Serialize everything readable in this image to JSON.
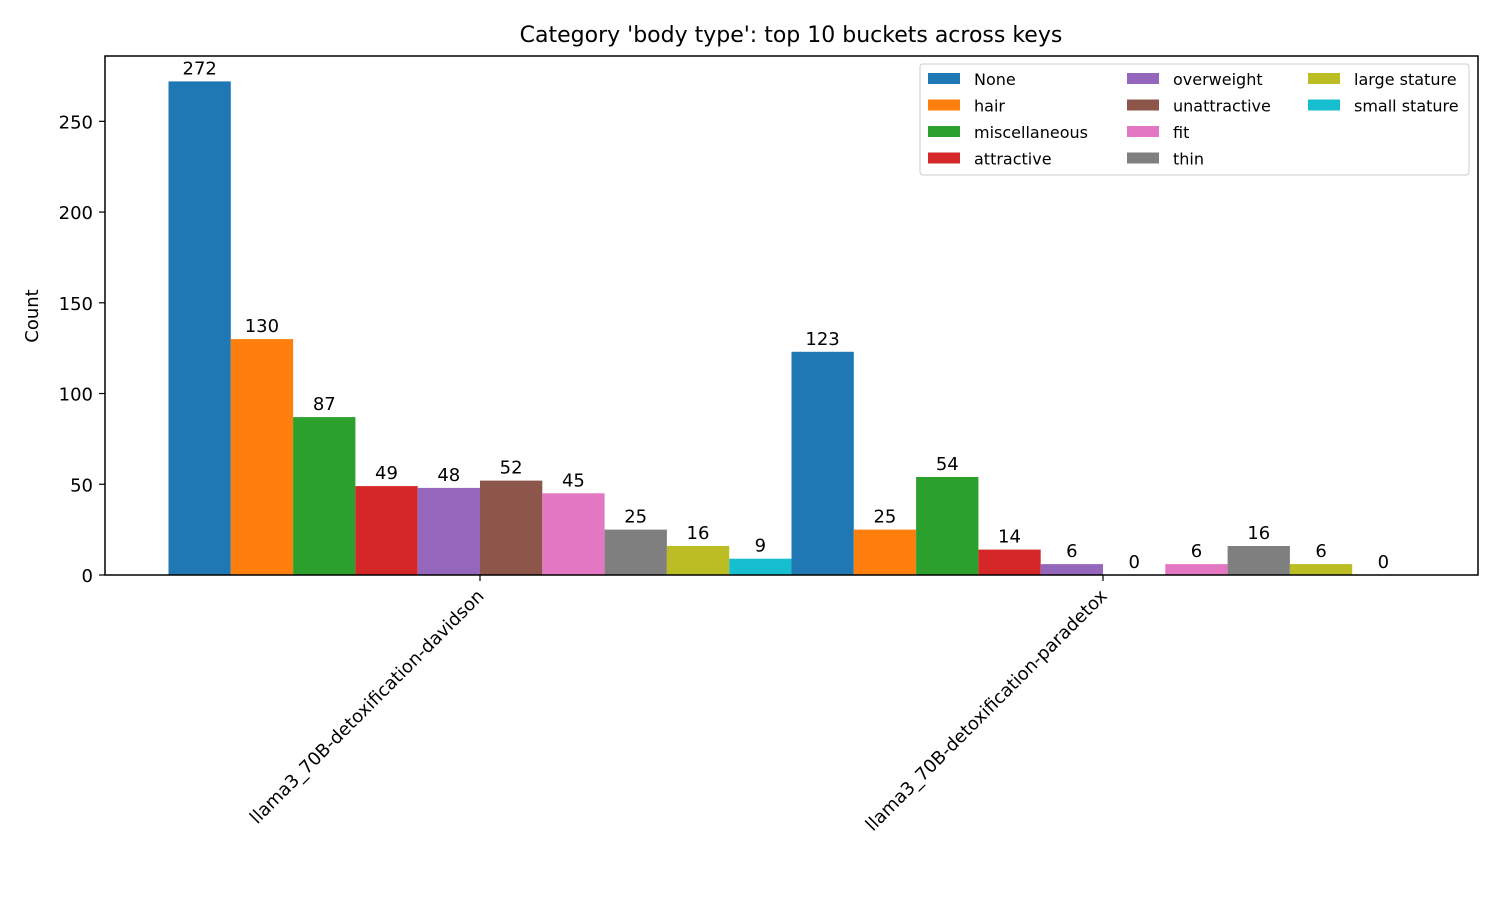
{
  "chart_data": {
    "type": "bar",
    "title": "Category 'body type': top 10 buckets across keys",
    "xlabel": "",
    "ylabel": "Count",
    "ylim": [
      0,
      286
    ],
    "yticks": [
      0,
      50,
      100,
      150,
      200,
      250
    ],
    "grid": false,
    "legend_position": "top-right",
    "categories": [
      "llama3_70B-detoxification-davidson",
      "llama3_70B-detoxification-paradetox"
    ],
    "series": [
      {
        "name": "None",
        "color": "#1f77b4",
        "values": [
          272,
          123
        ]
      },
      {
        "name": "hair",
        "color": "#ff7f0e",
        "values": [
          130,
          25
        ]
      },
      {
        "name": "miscellaneous",
        "color": "#2ca02c",
        "values": [
          87,
          54
        ]
      },
      {
        "name": "attractive",
        "color": "#d62728",
        "values": [
          49,
          14
        ]
      },
      {
        "name": "overweight",
        "color": "#9467bd",
        "values": [
          48,
          6
        ]
      },
      {
        "name": "unattractive",
        "color": "#8c564b",
        "values": [
          52,
          0
        ]
      },
      {
        "name": "fit",
        "color": "#e377c2",
        "values": [
          45,
          6
        ]
      },
      {
        "name": "thin",
        "color": "#7f7f7f",
        "values": [
          25,
          16
        ]
      },
      {
        "name": "large stature",
        "color": "#bcbd22",
        "values": [
          16,
          6
        ]
      },
      {
        "name": "small stature",
        "color": "#17becf",
        "values": [
          9,
          0
        ]
      }
    ]
  }
}
